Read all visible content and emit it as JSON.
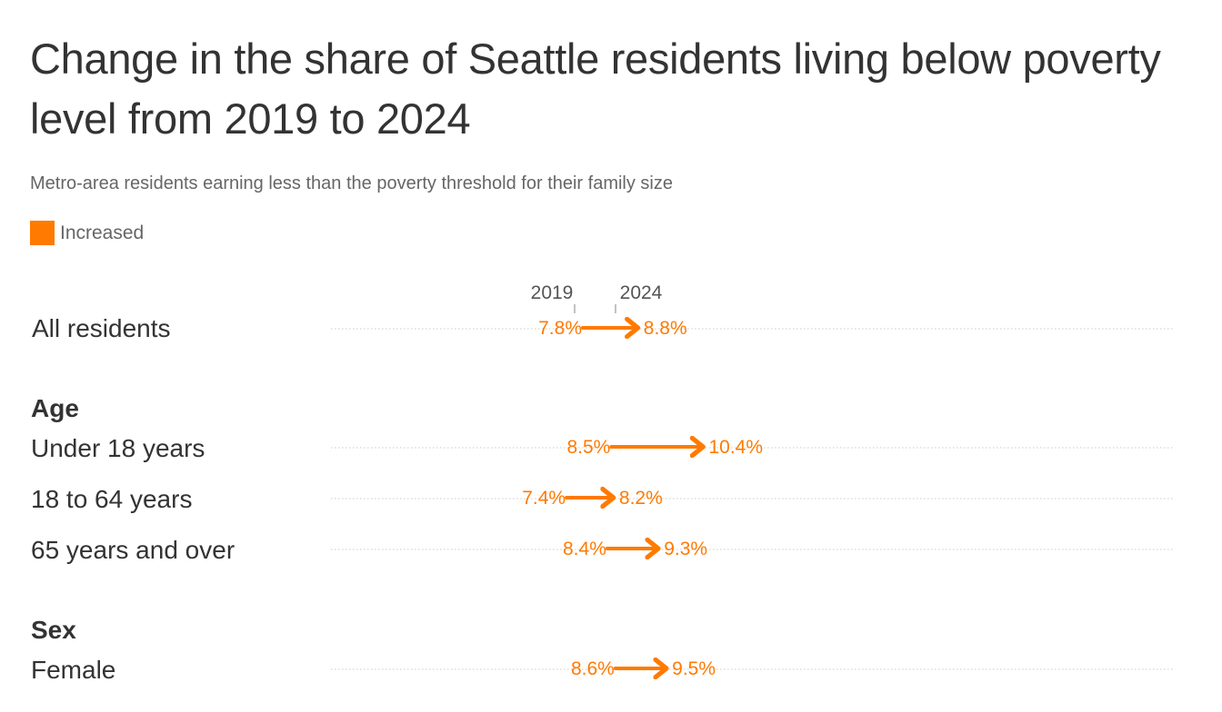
{
  "chart_data": {
    "type": "arrow-dumbbell",
    "title": "Change in the share of Seattle residents living below poverty level from 2019 to 2024",
    "subtitle": "Metro-area residents earning less than the poverty threshold for their family size",
    "legend": [
      {
        "label": "Increased",
        "color": "#ff7a00"
      }
    ],
    "start_year": "2019",
    "end_year": "2024",
    "rows": [
      {
        "group": null,
        "label": "All residents",
        "start": 7.8,
        "end": 8.8,
        "start_label": "7.8%",
        "end_label": "8.8%"
      },
      {
        "group": "Age",
        "label": "Under 18 years",
        "start": 8.5,
        "end": 10.4,
        "start_label": "8.5%",
        "end_label": "10.4%"
      },
      {
        "group": "Age",
        "label": "18 to 64 years",
        "start": 7.4,
        "end": 8.2,
        "start_label": "7.4%",
        "end_label": "8.2%"
      },
      {
        "group": "Age",
        "label": "65 years and over",
        "start": 8.4,
        "end": 9.3,
        "start_label": "8.4%",
        "end_label": "9.3%"
      },
      {
        "group": "Sex",
        "label": "Female",
        "start": 8.6,
        "end": 9.5,
        "start_label": "8.6%",
        "end_label": "9.5%"
      }
    ],
    "groups": [
      "Age",
      "Sex"
    ],
    "colors": {
      "increased": "#ff7a00",
      "text": "#333333",
      "muted": "#666666",
      "dotted_line": "#cccccc"
    }
  }
}
